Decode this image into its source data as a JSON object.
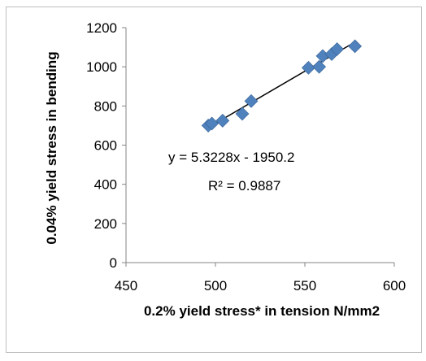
{
  "chart_data": {
    "type": "scatter",
    "title": "",
    "xlabel": "0.2% yield stress* in tension N/mm2",
    "ylabel": "0.04% yield stress in bending",
    "xlim": [
      450,
      600
    ],
    "ylim": [
      0,
      1200
    ],
    "x_ticks": [
      450,
      500,
      550,
      600
    ],
    "y_ticks": [
      0,
      200,
      400,
      600,
      800,
      1000,
      1200
    ],
    "grid": false,
    "legend": "none",
    "marker_color": "#4f81bd",
    "trendline_color": "#000000",
    "series": [
      {
        "x": [
          496,
          498,
          504,
          515,
          520,
          552,
          558,
          560,
          565,
          568,
          578
        ],
        "y": [
          700,
          710,
          725,
          760,
          825,
          995,
          1000,
          1055,
          1065,
          1090,
          1105
        ]
      }
    ],
    "trendline": {
      "slope": 5.3228,
      "intercept": -1950.2,
      "x_range": [
        496,
        578
      ]
    },
    "annotations": {
      "equation": "y = 5.3228x - 1950.2",
      "r_squared": "R² = 0.9887"
    }
  }
}
